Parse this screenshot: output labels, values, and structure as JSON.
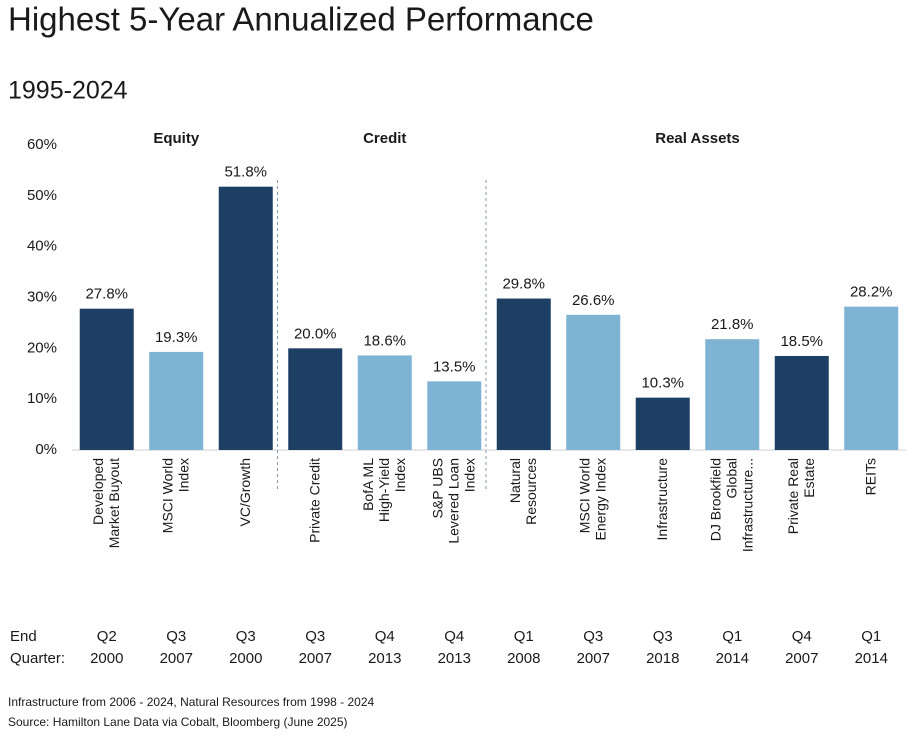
{
  "chart_data": {
    "type": "bar",
    "title": "Highest 5-Year Annualized Performance",
    "subtitle": "1995-2024",
    "groups": [
      {
        "name": "Equity",
        "span": [
          0,
          2
        ]
      },
      {
        "name": "Credit",
        "span": [
          3,
          5
        ]
      },
      {
        "name": "Real Assets",
        "span": [
          6,
          11
        ]
      }
    ],
    "categories": [
      "Developed Market Buyout",
      "MSCI World Index",
      "VC/Growth",
      "Private Credit",
      "BofA ML High-Yield Index",
      "S&P UBS Levered Loan Index",
      "Natural Resources",
      "MSCI World Energy Index",
      "Infrastructure",
      "DJ Brookfield Global Infrastructure...",
      "Private Real Estate",
      "REITs"
    ],
    "values": [
      27.8,
      19.3,
      51.8,
      20.0,
      18.6,
      13.5,
      29.8,
      26.6,
      10.3,
      21.8,
      18.5,
      28.2
    ],
    "value_labels": [
      "27.8%",
      "19.3%",
      "51.8%",
      "20.0%",
      "18.6%",
      "13.5%",
      "29.8%",
      "26.6%",
      "10.3%",
      "21.8%",
      "18.5%",
      "28.2%"
    ],
    "colors": [
      "#1c3f63",
      "#7fb3d3",
      "#1c3f63",
      "#1c3f63",
      "#7fb3d3",
      "#7fb3d3",
      "#1c3f63",
      "#7fb3d3",
      "#1c3f63",
      "#7fb3d3",
      "#1c3f63",
      "#7fb3d3"
    ],
    "ylim": [
      0,
      60
    ],
    "yticks": [
      {
        "value": 0,
        "label": "0%"
      },
      {
        "value": 10,
        "label": "10%"
      },
      {
        "value": 20,
        "label": "20%"
      },
      {
        "value": 30,
        "label": "30%"
      },
      {
        "value": 40,
        "label": "40%"
      },
      {
        "value": 50,
        "label": "50%"
      },
      {
        "value": 60,
        "label": "60%"
      }
    ],
    "grid": false,
    "end_quarter_label": "End Quarter:",
    "end_quarters": [
      "Q2 2000",
      "Q3 2007",
      "Q3 2000",
      "Q3 2007",
      "Q4 2013",
      "Q4 2013",
      "Q1 2008",
      "Q3 2007",
      "Q3 2018",
      "Q1 2014",
      "Q4 2007",
      "Q1 2014"
    ],
    "footnotes": [
      "Infrastructure from 2006 - 2024, Natural Resources from 1998 - 2024",
      "Source: Hamilton Lane Data via Cobalt, Bloomberg (June 2025)"
    ]
  }
}
